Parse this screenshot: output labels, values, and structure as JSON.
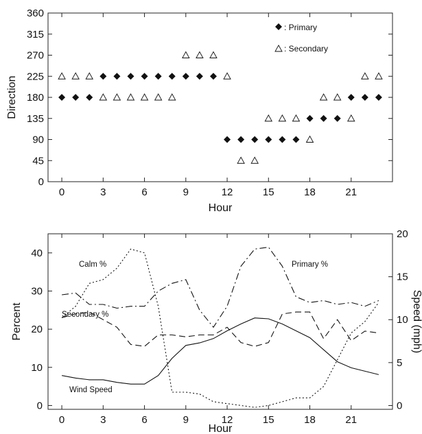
{
  "chart_data": [
    {
      "type": "scatter",
      "xlabel": "Hour",
      "ylabel": "Direction",
      "xlim": [
        -1,
        24
      ],
      "ylim": [
        0,
        360
      ],
      "x_ticks": [
        0,
        3,
        6,
        9,
        12,
        15,
        18,
        21
      ],
      "y_ticks": [
        0,
        45,
        90,
        135,
        180,
        225,
        270,
        315,
        360
      ],
      "grid": false,
      "legend_position": "top-right",
      "series": [
        {
          "name": ": Primary",
          "marker": "filled-diamond",
          "x": [
            0,
            1,
            2,
            3,
            4,
            5,
            6,
            7,
            8,
            9,
            10,
            11,
            12,
            13,
            14,
            15,
            16,
            17,
            18,
            19,
            20,
            21,
            22,
            23
          ],
          "y": [
            180,
            180,
            180,
            225,
            225,
            225,
            225,
            225,
            225,
            225,
            225,
            225,
            90,
            90,
            90,
            90,
            90,
            90,
            135,
            135,
            135,
            180,
            180,
            180
          ]
        },
        {
          "name": ": Secondary",
          "marker": "open-triangle",
          "x": [
            0,
            1,
            2,
            3,
            4,
            5,
            6,
            7,
            8,
            9,
            10,
            11,
            12,
            13,
            14,
            15,
            16,
            17,
            18,
            19,
            20,
            21,
            22,
            23
          ],
          "y": [
            225,
            225,
            225,
            180,
            180,
            180,
            180,
            180,
            180,
            270,
            270,
            270,
            225,
            45,
            45,
            135,
            135,
            135,
            90,
            180,
            180,
            135,
            225,
            225
          ]
        }
      ]
    },
    {
      "type": "line",
      "xlabel": "Hour",
      "ylabel": "Percent",
      "y2label": "Speed (mph)",
      "xlim": [
        -1,
        24
      ],
      "ylim": [
        -1,
        45
      ],
      "y2lim": [
        -0.44,
        20
      ],
      "x_ticks": [
        0,
        3,
        6,
        9,
        12,
        15,
        18,
        21
      ],
      "y_ticks": [
        0,
        10,
        20,
        30,
        40
      ],
      "y2_ticks": [
        0,
        5,
        10,
        15,
        20
      ],
      "grid": false,
      "x": [
        0,
        1,
        2,
        3,
        4,
        5,
        6,
        7,
        8,
        9,
        10,
        11,
        12,
        13,
        14,
        15,
        16,
        17,
        18,
        19,
        20,
        21,
        22,
        23
      ],
      "series": [
        {
          "name": "Calm %",
          "style": "dotted",
          "axis": "left",
          "values": [
            23,
            26,
            32,
            33,
            36,
            41,
            40,
            26,
            3.5,
            3.5,
            3,
            1,
            0.5,
            0,
            -0.5,
            0,
            1,
            2,
            2,
            5,
            12,
            19,
            22,
            27
          ]
        },
        {
          "name": "Primary %",
          "style": "dash-dot",
          "axis": "left",
          "values": [
            29,
            29.5,
            26.5,
            26.5,
            25.5,
            26,
            26,
            30,
            32,
            33,
            25,
            20.5,
            26,
            36.5,
            41,
            41.5,
            36.5,
            28.5,
            27,
            27.5,
            26.5,
            27,
            26,
            27.5
          ]
        },
        {
          "name": "Secondary %",
          "style": "dashed",
          "axis": "left",
          "values": [
            23,
            24,
            24.5,
            22.5,
            20.5,
            16,
            15.5,
            18.5,
            18.5,
            18,
            18.5,
            18.5,
            20.5,
            16.5,
            15.5,
            16.5,
            24,
            24.5,
            24.5,
            17.5,
            22.5,
            17,
            19.5,
            19
          ]
        },
        {
          "name": "Wind Speed",
          "style": "solid",
          "axis": "right",
          "values": [
            3.5,
            3.2,
            3.0,
            3.0,
            2.7,
            2.5,
            2.5,
            3.5,
            5.5,
            7.0,
            7.3,
            7.8,
            8.7,
            9.5,
            10.2,
            10.1,
            9.5,
            8.7,
            7.9,
            6.5,
            5.1,
            4.4,
            4.0,
            3.6
          ]
        }
      ],
      "annotations": [
        "Calm %",
        "Primary %",
        "Secondary %",
        "Wind Speed"
      ]
    }
  ]
}
